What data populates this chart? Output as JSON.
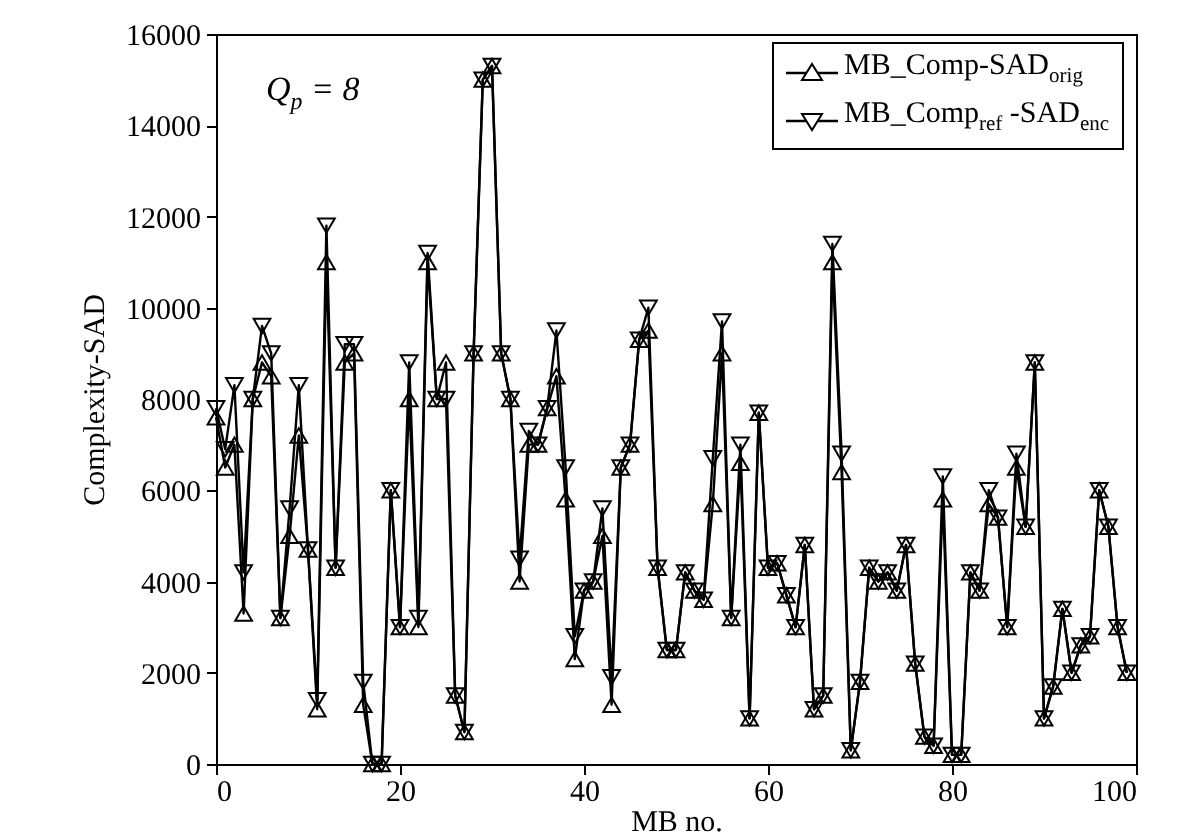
{
  "chart_data": {
    "type": "line",
    "xlabel": "MB no.",
    "ylabel": "Complexity-SAD",
    "annotations": [
      "Q$_{p}$ = 8"
    ],
    "x": [
      0,
      1,
      2,
      3,
      4,
      5,
      6,
      7,
      8,
      9,
      10,
      11,
      12,
      13,
      14,
      15,
      16,
      17,
      18,
      19,
      20,
      21,
      22,
      23,
      24,
      25,
      26,
      27,
      28,
      29,
      30,
      31,
      32,
      33,
      34,
      35,
      36,
      37,
      38,
      39,
      40,
      41,
      42,
      43,
      44,
      45,
      46,
      47,
      48,
      49,
      50,
      51,
      52,
      53,
      54,
      55,
      56,
      57,
      58,
      59,
      60,
      61,
      62,
      63,
      64,
      65,
      66,
      67,
      68,
      69,
      70,
      71,
      72,
      73,
      74,
      75,
      76,
      77,
      78,
      79,
      80,
      81,
      82,
      83,
      84,
      85,
      86,
      87,
      88,
      89,
      90,
      91,
      92,
      93,
      94,
      95,
      96,
      97,
      98,
      99
    ],
    "series": [
      {
        "name": "MB_Comp-SAD$_{orig}$",
        "color": "#000000",
        "values": [
          7600,
          6500,
          7000,
          3300,
          8000,
          8800,
          8500,
          3200,
          5000,
          7200,
          4700,
          1200,
          11000,
          4300,
          8800,
          9000,
          1300,
          0,
          0,
          6000,
          3000,
          8000,
          3000,
          11000,
          8000,
          8800,
          1500,
          700,
          9000,
          15000,
          15300,
          9000,
          8000,
          4000,
          7000,
          7000,
          7800,
          8500,
          5800,
          2300,
          3800,
          4000,
          5000,
          1300,
          6500,
          7000,
          9300,
          9500,
          4300,
          2500,
          2500,
          4200,
          3800,
          3600,
          5700,
          9000,
          3200,
          6600,
          1000,
          7700,
          4300,
          4400,
          3700,
          3000,
          4800,
          1200,
          1500,
          11000,
          6400,
          300,
          1800,
          4300,
          4000,
          4200,
          3800,
          4800,
          2200,
          600,
          400,
          5800,
          200,
          200,
          4200,
          3800,
          5700,
          5400,
          3000,
          6500,
          5200,
          8800,
          1000,
          1700,
          3400,
          2000,
          2600,
          2800,
          6000,
          5200,
          3000,
          2000
        ]
      },
      {
        "name": "MB_Comp$_{ref}$ -SAD$_{enc}$",
        "color": "#000000",
        "values": [
          7800,
          6900,
          8300,
          4200,
          8000,
          9600,
          9000,
          3200,
          5600,
          8300,
          4700,
          1400,
          11800,
          4300,
          9200,
          9200,
          1800,
          0,
          0,
          6000,
          3000,
          8800,
          3200,
          11200,
          8000,
          8000,
          1500,
          700,
          9000,
          15000,
          15300,
          9000,
          8000,
          4500,
          7300,
          7000,
          7800,
          9500,
          6500,
          2800,
          3800,
          4000,
          5600,
          1900,
          6500,
          7000,
          9300,
          10000,
          4300,
          2500,
          2500,
          4200,
          3800,
          3600,
          6700,
          9700,
          3200,
          7000,
          1000,
          7700,
          4300,
          4400,
          3700,
          3000,
          4800,
          1200,
          1500,
          11400,
          6800,
          300,
          1800,
          4300,
          4000,
          4200,
          3800,
          4800,
          2200,
          600,
          400,
          6300,
          200,
          200,
          4200,
          3800,
          6000,
          5400,
          3000,
          6800,
          5200,
          8800,
          1000,
          1700,
          3400,
          2000,
          2600,
          2800,
          6000,
          5200,
          3000,
          2000
        ]
      }
    ],
    "xlim": [
      0,
      100
    ],
    "xticks": [
      0,
      20,
      40,
      60,
      80,
      100
    ],
    "ylim": [
      0,
      16000
    ],
    "yticks": [
      0,
      2000,
      4000,
      6000,
      8000,
      10000,
      12000,
      14000,
      16000
    ],
    "marker": "triangle",
    "legend": "top right"
  }
}
